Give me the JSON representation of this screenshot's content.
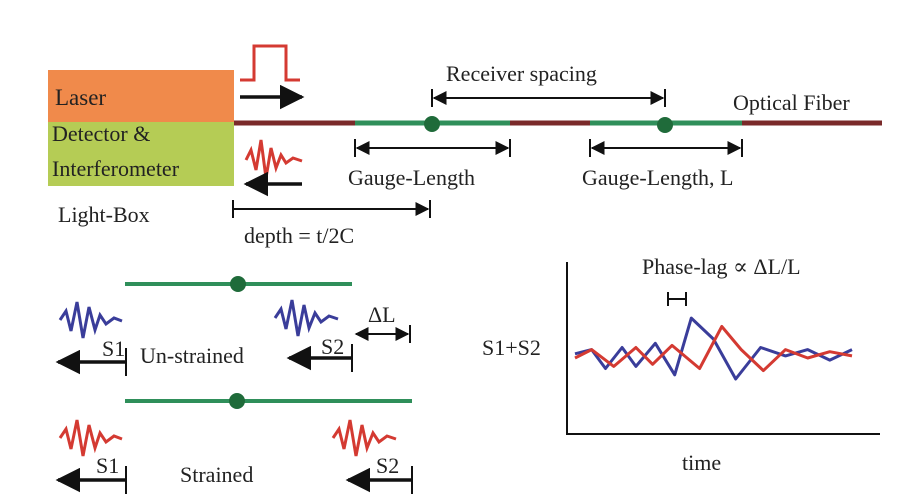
{
  "light_box": {
    "laser_label": "Laser",
    "detector_label_line1": "Detector &",
    "detector_label_line2": "Interferometer",
    "box_label": "Light-Box",
    "laser_color": "#f08a4b",
    "detector_color": "#b5cc55"
  },
  "fiber": {
    "label": "Optical Fiber",
    "fiber_color": "#7a2a2a",
    "gauge_color": "#2f8f5a",
    "node_color": "#1f6b3a"
  },
  "annotations": {
    "receiver_spacing": "Receiver spacing",
    "gauge_length_1": "Gauge-Length",
    "gauge_length_2": "Gauge-Length, L",
    "depth": "depth = t/2C",
    "phase_lag": "Phase-lag ∝ ΔL/L",
    "delta_l": "ΔL"
  },
  "strain_panels": {
    "unstrained": {
      "title": "Un-strained",
      "s1": "S1",
      "s2": "S2",
      "wavelet_color": "#3a3d9a"
    },
    "strained": {
      "title": "Strained",
      "s1": "S1",
      "s2": "S2",
      "wavelet_color": "#d43a32"
    }
  },
  "chart_data": {
    "type": "line",
    "ylabel": "S1+S2",
    "xlabel": "time",
    "series": [
      {
        "color": "#3a3d9a",
        "points": [
          [
            0,
            0.1
          ],
          [
            0.06,
            0.2
          ],
          [
            0.11,
            -0.25
          ],
          [
            0.17,
            0.25
          ],
          [
            0.22,
            -0.2
          ],
          [
            0.29,
            0.35
          ],
          [
            0.36,
            -0.4
          ],
          [
            0.42,
            0.95
          ],
          [
            0.5,
            0.45
          ],
          [
            0.58,
            -0.5
          ],
          [
            0.67,
            0.25
          ],
          [
            0.76,
            0.05
          ],
          [
            0.84,
            0.2
          ],
          [
            0.92,
            -0.05
          ],
          [
            1.0,
            0.2
          ]
        ]
      },
      {
        "color": "#d43a32",
        "points": [
          [
            0,
            0.0
          ],
          [
            0.06,
            0.2
          ],
          [
            0.14,
            -0.2
          ],
          [
            0.22,
            0.25
          ],
          [
            0.28,
            -0.15
          ],
          [
            0.35,
            0.3
          ],
          [
            0.45,
            -0.25
          ],
          [
            0.53,
            0.75
          ],
          [
            0.6,
            0.2
          ],
          [
            0.68,
            -0.3
          ],
          [
            0.76,
            0.2
          ],
          [
            0.84,
            0.0
          ],
          [
            0.92,
            0.15
          ],
          [
            1.0,
            0.05
          ]
        ]
      }
    ]
  }
}
